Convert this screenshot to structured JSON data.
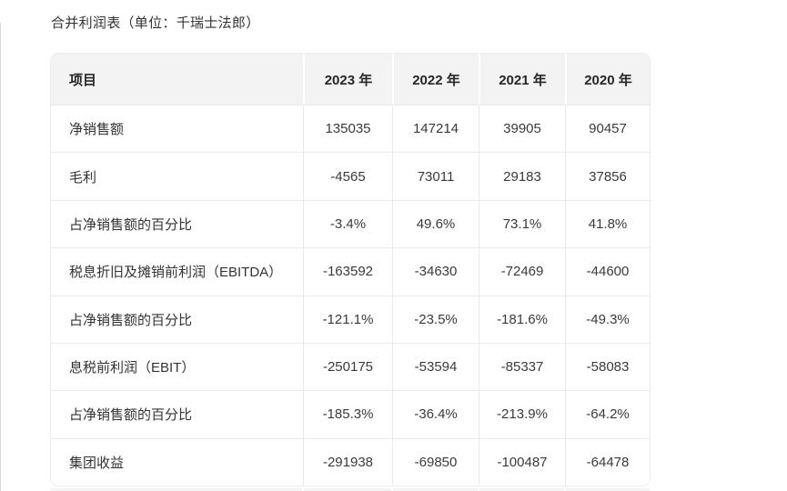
{
  "page": {
    "title": "合并利润表（单位：千瑞士法郎）"
  },
  "table": {
    "columns": [
      "项目",
      "2023 年",
      "2022 年",
      "2021 年",
      "2020 年"
    ],
    "rows": [
      {
        "label": "净销售额",
        "values": [
          "135035",
          "147214",
          "39905",
          "90457"
        ]
      },
      {
        "label": "毛利",
        "values": [
          "-4565",
          "73011",
          "29183",
          "37856"
        ]
      },
      {
        "label": "占净销售额的百分比",
        "values": [
          "-3.4%",
          "49.6%",
          "73.1%",
          "41.8%"
        ]
      },
      {
        "label": "税息折旧及摊销前利润（EBITDA）",
        "values": [
          "-163592",
          "-34630",
          "-72469",
          "-44600"
        ]
      },
      {
        "label": "占净销售额的百分比",
        "values": [
          "-121.1%",
          "-23.5%",
          "-181.6%",
          "-49.3%"
        ]
      },
      {
        "label": "息税前利润（EBIT）",
        "values": [
          "-250175",
          "-53594",
          "-85337",
          "-58083"
        ]
      },
      {
        "label": "占净销售额的百分比",
        "values": [
          "-185.3%",
          "-36.4%",
          "-213.9%",
          "-64.2%"
        ]
      },
      {
        "label": "集团收益",
        "values": [
          "-291938",
          "-69850",
          "-100487",
          "-64478"
        ]
      }
    ],
    "colors": {
      "header_bg": "#f3f3f3",
      "row_border": "#eaeaea",
      "header_text": "#262626",
      "body_text": "#333333"
    }
  }
}
